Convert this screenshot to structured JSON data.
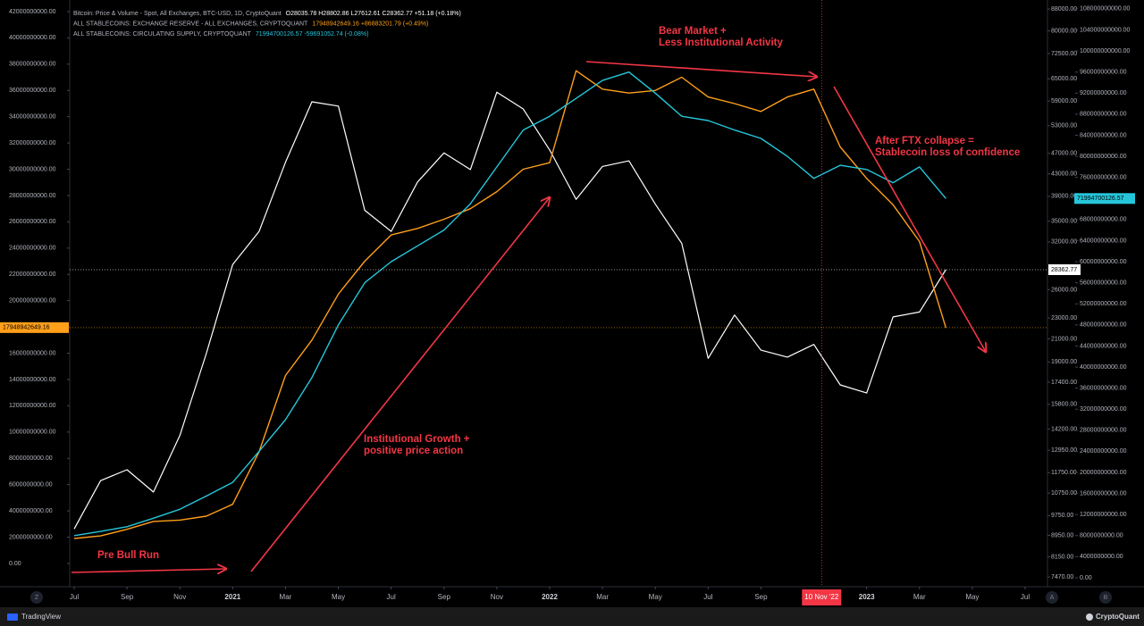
{
  "chart_data": {
    "type": "line",
    "x": [
      "2020-07",
      "2020-08",
      "2020-09",
      "2020-10",
      "2020-11",
      "2020-12",
      "2021-01",
      "2021-02",
      "2021-03",
      "2021-04",
      "2021-05",
      "2021-06",
      "2021-07",
      "2021-08",
      "2021-09",
      "2021-10",
      "2021-11",
      "2021-12",
      "2022-01",
      "2022-02",
      "2022-03",
      "2022-04",
      "2022-05",
      "2022-06",
      "2022-07",
      "2022-08",
      "2022-09",
      "2022-10",
      "2022-11",
      "2022-12",
      "2023-01",
      "2023-02",
      "2023-03",
      "2023-04"
    ],
    "xlim": [
      "2020-07",
      "2023-07"
    ],
    "xticks": [
      {
        "value": "2020-07",
        "label": "Jul"
      },
      {
        "value": "2020-09",
        "label": "Sep"
      },
      {
        "value": "2020-11",
        "label": "Nov"
      },
      {
        "value": "2021-01",
        "label": "2021"
      },
      {
        "value": "2021-03",
        "label": "Mar"
      },
      {
        "value": "2021-05",
        "label": "May"
      },
      {
        "value": "2021-07",
        "label": "Jul"
      },
      {
        "value": "2021-09",
        "label": "Sep"
      },
      {
        "value": "2021-11",
        "label": "Nov"
      },
      {
        "value": "2022-01",
        "label": "2022"
      },
      {
        "value": "2022-03",
        "label": "Mar"
      },
      {
        "value": "2022-05",
        "label": "May"
      },
      {
        "value": "2022-07",
        "label": "Jul"
      },
      {
        "value": "2022-09",
        "label": "Sep"
      },
      {
        "value": "2023-01",
        "label": "2023"
      },
      {
        "value": "2023-03",
        "label": "Mar"
      },
      {
        "value": "2023-05",
        "label": "May"
      },
      {
        "value": "2023-07",
        "label": "Jul"
      }
    ],
    "ylim": [
      -1770000000,
      42610000000
    ],
    "yticks": [
      {
        "value": 0,
        "label": "0.00"
      },
      {
        "value": 2000000000,
        "label": "2000000000.00"
      },
      {
        "value": 4000000000,
        "label": "4000000000.00"
      },
      {
        "value": 6000000000,
        "label": "6000000000.00"
      },
      {
        "value": 8000000000,
        "label": "8000000000.00"
      },
      {
        "value": 10000000000,
        "label": "10000000000.00"
      },
      {
        "value": 12000000000,
        "label": "12000000000.00"
      },
      {
        "value": 14000000000,
        "label": "14000000000.00"
      },
      {
        "value": 16000000000,
        "label": "16000000000.00"
      },
      {
        "value": 18000000000,
        "label": "18000000000.00"
      },
      {
        "value": 20000000000,
        "label": "20000000000.00"
      },
      {
        "value": 22000000000,
        "label": "22000000000.00"
      },
      {
        "value": 24000000000,
        "label": "24000000000.00"
      },
      {
        "value": 26000000000,
        "label": "26000000000.00"
      },
      {
        "value": 28000000000,
        "label": "28000000000.00"
      },
      {
        "value": 30000000000,
        "label": "30000000000.00"
      },
      {
        "value": 32000000000,
        "label": "32000000000.00"
      },
      {
        "value": 34000000000,
        "label": "34000000000.00"
      },
      {
        "value": 36000000000,
        "label": "36000000000.00"
      },
      {
        "value": 38000000000,
        "label": "38000000000.00"
      },
      {
        "value": 40000000000,
        "label": "40000000000.00"
      },
      {
        "value": 42000000000,
        "label": "42000000000.00"
      }
    ],
    "y2lim": [
      7160,
      90070
    ],
    "y2log": true,
    "y2ticks": [
      {
        "value": 88000,
        "label": "88000.00"
      },
      {
        "value": 80000,
        "label": "80000.00"
      },
      {
        "value": 72500,
        "label": "72500.00"
      },
      {
        "value": 65000,
        "label": "65000.00"
      },
      {
        "value": 59000,
        "label": "59000.00"
      },
      {
        "value": 53000,
        "label": "53000.00"
      },
      {
        "value": 47000,
        "label": "47000.00"
      },
      {
        "value": 43000,
        "label": "43000.00"
      },
      {
        "value": 39000,
        "label": "39000.00"
      },
      {
        "value": 35000,
        "label": "35000.00"
      },
      {
        "value": 32000,
        "label": "32000.00"
      },
      {
        "value": 26000,
        "label": "26000.00"
      },
      {
        "value": 23000,
        "label": "23000.00"
      },
      {
        "value": 21000,
        "label": "21000.00"
      },
      {
        "value": 19000,
        "label": "19000.00"
      },
      {
        "value": 17400,
        "label": "17400.00"
      },
      {
        "value": 15800,
        "label": "15800.00"
      },
      {
        "value": 14200,
        "label": "14200.00"
      },
      {
        "value": 12950,
        "label": "12950.00"
      },
      {
        "value": 11750,
        "label": "11750.00"
      },
      {
        "value": 10750,
        "label": "10750.00"
      },
      {
        "value": 9750,
        "label": "9750.00"
      },
      {
        "value": 8950,
        "label": "8950.00"
      },
      {
        "value": 8150,
        "label": "8150.00"
      },
      {
        "value": 7470,
        "label": "7470.00"
      }
    ],
    "y3lim": [
      -1700000000,
      109000000000
    ],
    "y3ticks": [
      {
        "value": 0,
        "label": "0.00"
      },
      {
        "value": 4000000000,
        "label": "4000000000.00"
      },
      {
        "value": 8000000000,
        "label": "8000000000.00"
      },
      {
        "value": 12000000000,
        "label": "12000000000.00"
      },
      {
        "value": 16000000000,
        "label": "16000000000.00"
      },
      {
        "value": 20000000000,
        "label": "20000000000.00"
      },
      {
        "value": 24000000000,
        "label": "24000000000.00"
      },
      {
        "value": 28000000000,
        "label": "28000000000.00"
      },
      {
        "value": 32000000000,
        "label": "32000000000.00"
      },
      {
        "value": 36000000000,
        "label": "36000000000.00"
      },
      {
        "value": 40000000000,
        "label": "40000000000.00"
      },
      {
        "value": 44000000000,
        "label": "44000000000.00"
      },
      {
        "value": 48000000000,
        "label": "48000000000.00"
      },
      {
        "value": 52000000000,
        "label": "52000000000.00"
      },
      {
        "value": 56000000000,
        "label": "56000000000.00"
      },
      {
        "value": 60000000000,
        "label": "60000000000.00"
      },
      {
        "value": 64000000000,
        "label": "64000000000.00"
      },
      {
        "value": 68000000000,
        "label": "68000000000.00"
      },
      {
        "value": 72000000000,
        "label": "72000000000.00"
      },
      {
        "value": 76000000000,
        "label": "76000000000.00"
      },
      {
        "value": 80000000000,
        "label": "80000000000.00"
      },
      {
        "value": 84000000000,
        "label": "84000000000.00"
      },
      {
        "value": 88000000000,
        "label": "88000000000.00"
      },
      {
        "value": 92000000000,
        "label": "92000000000.00"
      },
      {
        "value": 96000000000,
        "label": "96000000000.00"
      },
      {
        "value": 100000000000,
        "label": "100000000000.00"
      },
      {
        "value": 104000000000,
        "label": "104000000000.00"
      },
      {
        "value": 108000000000,
        "label": "108000000000.00"
      }
    ],
    "grid": false,
    "last_value_labels": true,
    "series": [
      {
        "name": "Bitcoin: Price & Volume - Spot, All Exchanges, BTC-USD, 1D, CryptoQuant",
        "stats": "O28035.78  H28802.86  L27612.61  C28362.77  +51.18 (+0.18%)",
        "color": "#ffffff",
        "axis": "y2",
        "values": [
          9200,
          11350,
          11900,
          10800,
          13800,
          19700,
          29000,
          33500,
          45200,
          58800,
          57700,
          36700,
          33500,
          41500,
          47100,
          43800,
          61300,
          57000,
          47700,
          38500,
          44400,
          45500,
          37700,
          31800,
          19300,
          23300,
          20000,
          19400,
          20500,
          17200,
          16600,
          23100,
          23600,
          28362.77
        ]
      },
      {
        "name": "ALL STABLECOINS: EXCHANGE RESERVE - ALL EXCHANGES, CRYPTOQUANT",
        "stats": "17948942649.16  +86883201.79 (+0.49%)",
        "color": "#ff9f1a",
        "axis": "y",
        "values": [
          1900000000,
          2100000000,
          2600000000,
          3200000000,
          3300000000,
          3600000000,
          4500000000,
          8500000000,
          14300000000,
          17000000000,
          20500000000,
          23000000000,
          25000000000,
          25500000000,
          26200000000,
          27000000000,
          28300000000,
          30000000000,
          30500000000,
          37500000000,
          36100000000,
          35800000000,
          36000000000,
          37000000000,
          35500000000,
          35000000000,
          34400000000,
          35500000000,
          36100000000,
          31700000000,
          29300000000,
          27300000000,
          24500000000,
          17948942649.16
        ]
      },
      {
        "name": "ALL STABLECOINS: CIRCULATING SUPPLY, CRYPTOQUANT",
        "stats": "71994700126.57  -59691052.74 (-0.08%)",
        "color": "#26c6da",
        "axis": "y3",
        "values": [
          8000000000,
          8800000000,
          9700000000,
          11300000000,
          13000000000,
          15500000000,
          18100000000,
          24000000000,
          30000000000,
          38000000000,
          48000000000,
          56000000000,
          60000000000,
          63000000000,
          66000000000,
          71000000000,
          78000000000,
          85000000000,
          87600000000,
          91000000000,
          94400000000,
          96000000000,
          92000000000,
          87600000000,
          86800000000,
          85000000000,
          83400000000,
          80000000000,
          75800000000,
          78300000000,
          77500000000,
          75000000000,
          78000000000,
          71994700126.57
        ]
      }
    ],
    "crosshair": {
      "x": "2022-11-10",
      "label": "10 Nov '22"
    },
    "annotations": [
      {
        "lines": [
          "Bear Market +",
          "Less Institutional Activity"
        ]
      },
      {
        "lines": [
          "After FTX collapse =",
          "Stablecoin loss of confidence"
        ]
      },
      {
        "lines": [
          "Institutional Growth +",
          "positive price action"
        ]
      },
      {
        "lines": [
          "Pre Bull Run"
        ]
      }
    ]
  },
  "toolbar": {
    "buttons": [
      "Z",
      "A",
      "B"
    ],
    "brand_left": "TradingView",
    "brand_right": "CryptoQuant"
  }
}
